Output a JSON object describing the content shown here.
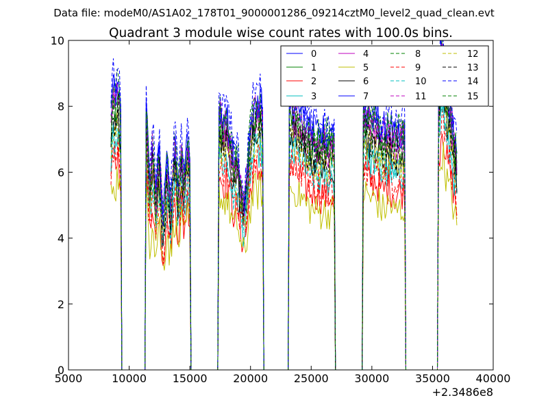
{
  "figure": {
    "suptitle": "Data file: modeM0/AS1A02_178T01_9000001286_09214cztM0_level2_quad_clean.evt",
    "title": "Quadrant 3 module wise count rates with 100.0s bins."
  },
  "chart_data": {
    "type": "line",
    "title": "Quadrant 3 module wise count rates with 100.0s bins.",
    "xlabel": "",
    "ylabel": "",
    "xlim": [
      5000,
      40000
    ],
    "ylim": [
      0,
      10
    ],
    "x_offset_label": "+2.3486e8",
    "x_ticks": [
      5000,
      10000,
      15000,
      20000,
      25000,
      30000,
      35000,
      40000
    ],
    "x_tick_labels": [
      "5000",
      "10000",
      "15000",
      "20000",
      "25000",
      "30000",
      "35000",
      "40000"
    ],
    "y_ticks": [
      0,
      2,
      4,
      6,
      8,
      10
    ],
    "y_tick_labels": [
      "0",
      "2",
      "4",
      "6",
      "8",
      "10"
    ],
    "grid": false,
    "legend": {
      "placement": "top-right",
      "columns": 4
    },
    "bin_width": 100,
    "x_start": 8500,
    "x_end": 37000,
    "active_segments": [
      [
        8500,
        9300
      ],
      [
        11400,
        15000
      ],
      [
        17400,
        21000
      ],
      [
        23200,
        26900
      ],
      [
        29300,
        32700
      ],
      [
        35500,
        37000
      ]
    ],
    "segment_profiles": [
      {
        "start": 8500,
        "end": 9300,
        "base": [
          7.0,
          7.6,
          7.9,
          7.4,
          7.8,
          8.1,
          7.5,
          7.2
        ]
      },
      {
        "start": 11400,
        "end": 15000,
        "base": [
          7.2,
          6.8,
          5.8,
          5.2,
          5.6,
          6.4,
          6.0,
          5.0,
          4.6,
          5.4,
          6.2,
          5.8,
          5.0,
          4.4,
          4.2,
          4.8,
          5.5,
          5.9,
          5.2,
          4.6,
          4.8,
          5.4,
          6.0,
          6.4,
          5.9,
          5.2,
          5.0,
          5.6,
          6.1,
          5.8,
          5.2,
          5.4,
          5.9,
          6.3,
          6.0,
          5.6
        ]
      },
      {
        "start": 17400,
        "end": 21000,
        "base": [
          7.2,
          7.3,
          7.0,
          6.9,
          6.9,
          7.0,
          7.2,
          6.8,
          6.6,
          6.5,
          6.3,
          6.0,
          5.8,
          5.9,
          6.1,
          6.0,
          5.6,
          5.3,
          5.0,
          4.8,
          4.7,
          4.8,
          5.2,
          5.7,
          6.2,
          6.6,
          6.9,
          7.1,
          7.3,
          7.4,
          7.3,
          7.2,
          7.4,
          7.5,
          7.3,
          7.1
        ]
      },
      {
        "start": 23200,
        "end": 26900,
        "base": [
          7.3,
          7.4,
          7.5,
          7.3,
          7.2,
          7.3,
          7.4,
          7.2,
          7.1,
          7.2,
          7.0,
          6.9,
          7.0,
          6.8,
          6.7,
          6.8,
          6.7,
          6.6,
          6.5,
          6.6,
          6.5,
          6.6,
          6.4,
          6.5,
          6.5,
          6.4,
          6.5,
          6.6,
          6.5,
          6.4,
          6.5,
          6.4,
          6.5,
          6.4,
          6.5,
          6.4,
          6.3
        ]
      },
      {
        "start": 29300,
        "end": 32700,
        "base": [
          7.3,
          7.3,
          7.2,
          7.1,
          7.2,
          7.1,
          7.0,
          6.9,
          7.0,
          7.1,
          7.0,
          6.8,
          6.9,
          6.8,
          6.6,
          6.5,
          6.6,
          6.7,
          6.6,
          6.7,
          6.8,
          6.9,
          6.7,
          6.6,
          6.5,
          6.5,
          6.4,
          6.5,
          6.6,
          6.6,
          6.5,
          6.6,
          6.7,
          6.6
        ]
      },
      {
        "start": 35500,
        "end": 37000,
        "base": [
          7.6,
          8.2,
          8.8,
          9.0,
          8.6,
          8.2,
          7.9,
          7.6,
          7.4,
          7.3,
          7.0,
          6.8,
          6.5,
          6.2,
          5.8
        ]
      }
    ],
    "series": [
      {
        "name": "0",
        "color": "#0000ff",
        "dash": "solid",
        "scale": 1.08
      },
      {
        "name": "1",
        "color": "#008000",
        "dash": "solid",
        "scale": 1.03
      },
      {
        "name": "2",
        "color": "#ff0000",
        "dash": "solid",
        "scale": 0.82
      },
      {
        "name": "3",
        "color": "#00bfbf",
        "dash": "solid",
        "scale": 0.9
      },
      {
        "name": "4",
        "color": "#bf00bf",
        "dash": "solid",
        "scale": 1.04
      },
      {
        "name": "5",
        "color": "#bfbf00",
        "dash": "solid",
        "scale": 0.74
      },
      {
        "name": "6",
        "color": "#000000",
        "dash": "solid",
        "scale": 0.97
      },
      {
        "name": "7",
        "color": "#0000ff",
        "dash": "solid",
        "scale": 1.1
      },
      {
        "name": "8",
        "color": "#008000",
        "dash": "dashed",
        "scale": 1.1
      },
      {
        "name": "9",
        "color": "#ff0000",
        "dash": "dashed",
        "scale": 0.86
      },
      {
        "name": "10",
        "color": "#00bfbf",
        "dash": "dashed",
        "scale": 0.92
      },
      {
        "name": "11",
        "color": "#bf00bf",
        "dash": "dashed",
        "scale": 1.07
      },
      {
        "name": "12",
        "color": "#bfbf00",
        "dash": "dashed",
        "scale": 0.95
      },
      {
        "name": "13",
        "color": "#000000",
        "dash": "dashed",
        "scale": 1.0
      },
      {
        "name": "14",
        "color": "#0000ff",
        "dash": "dashed",
        "scale": 1.15
      },
      {
        "name": "15",
        "color": "#008000",
        "dash": "dashed",
        "scale": 1.05
      }
    ]
  }
}
